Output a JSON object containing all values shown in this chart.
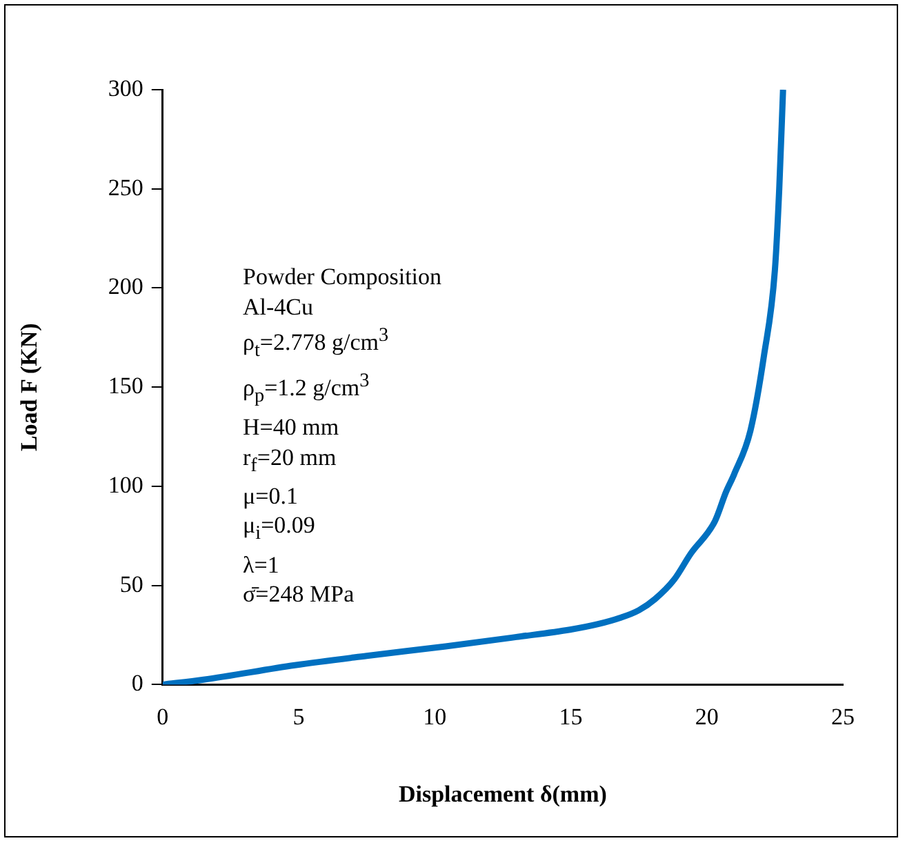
{
  "chart_data": {
    "type": "line",
    "xlabel": "Displacement δ(mm)",
    "ylabel": "Load F (KN)",
    "x": [
      0,
      1.5,
      4.86,
      7.5,
      10.4,
      13,
      14.97,
      16,
      16.8,
      17.5,
      18.1,
      18.8,
      19.4,
      20.3,
      20.7,
      21.0,
      21.6,
      22.1,
      22.5,
      22.66,
      22.8
    ],
    "series": [
      {
        "color": "#0070c0",
        "values": [
          0,
          2.5,
          9.8,
          14.5,
          19.3,
          24,
          27.7,
          30.5,
          33.6,
          37.5,
          43.2,
          53,
          65.9,
          82.5,
          97,
          106,
          128,
          166,
          209,
          250,
          300
        ]
      }
    ],
    "xlim": [
      0,
      25
    ],
    "xticks": [
      0,
      5,
      10,
      15,
      20,
      25
    ],
    "ylim": [
      0,
      300
    ],
    "yticks": [
      0,
      50,
      100,
      150,
      200,
      250,
      300
    ],
    "grid": false,
    "legend": false,
    "marker": "none",
    "line_style": "solid",
    "annotations": [
      "Powder Composition",
      "Al-4Cu",
      "ρ$_{t}$=2.778 g/cm$^{3}$",
      "ρ$_{p}$=1.2 g/cm$^{3}$",
      "H=40 mm",
      "r$_{f}$=20 mm",
      "μ=0.1",
      "μ$_{i}$=0.09",
      "λ=1",
      "σ̄=248 MPa"
    ]
  }
}
